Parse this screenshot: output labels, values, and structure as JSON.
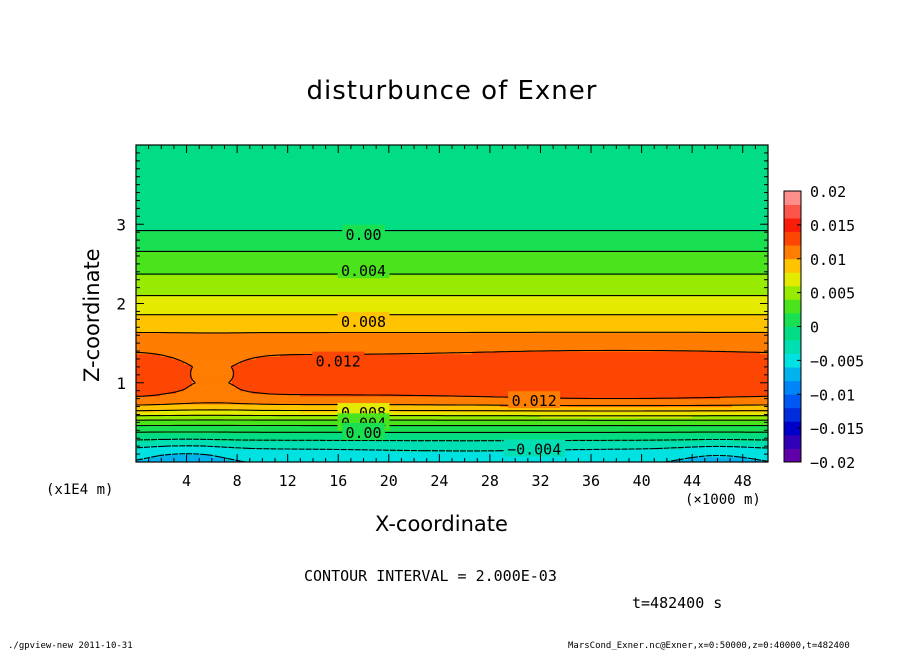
{
  "title": "disturbunce of Exner",
  "footer": {
    "contour_interval": "CONTOUR INTERVAL = 2.000E-03",
    "time": "t=482400 s",
    "program": "./gpview-new   2011-10-31",
    "file": "MarsCond_Exner.nc@Exner,x=0:50000,z=0:40000,t=482400"
  },
  "chart_data": {
    "type": "heatmap",
    "title": "disturbunce of Exner",
    "xlabel": "X-coordinate",
    "ylabel": "Z-coordinate",
    "x_multiplier": "(×1000 m)",
    "y_multiplier": "(x1E4 m)",
    "xlim": [
      0,
      50
    ],
    "ylim": [
      0,
      4
    ],
    "x_ticks": [
      4,
      8,
      12,
      16,
      20,
      24,
      28,
      32,
      36,
      40,
      44,
      48
    ],
    "y_ticks": [
      1,
      2,
      3
    ],
    "z_range": [
      -0.02,
      0.02
    ],
    "contour_interval": 0.002,
    "colorbar_ticks": [
      {
        "value": 0.02,
        "label": "0.02"
      },
      {
        "value": 0.015,
        "label": "0.015"
      },
      {
        "value": 0.01,
        "label": "0.01"
      },
      {
        "value": 0.005,
        "label": "0.005"
      },
      {
        "value": 0,
        "label": "0"
      },
      {
        "value": -0.005,
        "label": "−0.005"
      },
      {
        "value": -0.01,
        "label": "−0.01"
      },
      {
        "value": -0.015,
        "label": "−0.015"
      },
      {
        "value": -0.02,
        "label": "−0.02"
      }
    ],
    "contour_labels": [
      {
        "text": "0.00",
        "x": 18,
        "z": 2.88
      },
      {
        "text": "0.004",
        "x": 18,
        "z": 2.42
      },
      {
        "text": "0.008",
        "x": 18,
        "z": 1.78
      },
      {
        "text": "0.012",
        "x": 16,
        "z": 1.28
      },
      {
        "text": "0.012",
        "x": 31.5,
        "z": 0.78
      },
      {
        "text": "0.008",
        "x": 18,
        "z": 0.63
      },
      {
        "text": "0.004",
        "x": 18,
        "z": 0.5
      },
      {
        "text": "0.00",
        "x": 18,
        "z": 0.38
      },
      {
        "text": "−0.004",
        "x": 31.5,
        "z": 0.17
      }
    ],
    "vertical_profile": {
      "z": [
        0,
        0.1,
        0.2,
        0.3,
        0.4,
        0.5,
        0.6,
        0.7,
        0.8,
        0.9,
        1.0,
        1.2,
        1.4,
        1.6,
        1.8,
        2.0,
        2.2,
        2.4,
        2.6,
        2.8,
        2.9,
        3.0,
        3.2,
        3.5,
        3.8,
        4.0
      ],
      "value": [
        -0.0058,
        -0.005,
        -0.0035,
        -0.0015,
        0.0005,
        0.003,
        0.0065,
        0.0095,
        0.0115,
        0.0125,
        0.0129,
        0.0127,
        0.0118,
        0.0103,
        0.0085,
        0.0068,
        0.0052,
        0.0038,
        0.0024,
        0.001,
        0.0001,
        -0.0004,
        -0.0008,
        -0.0011,
        -0.0012,
        -0.0012
      ]
    }
  }
}
